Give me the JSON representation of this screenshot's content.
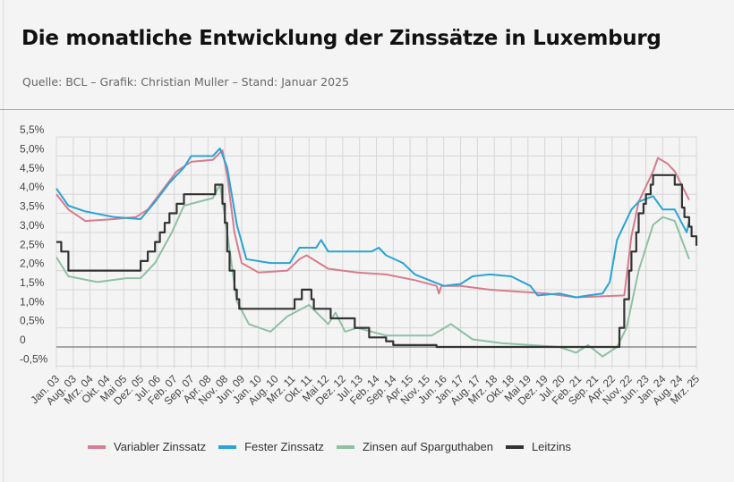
{
  "header": {
    "title": "Die monatliche Entwicklung der Zinssätze in Luxemburg",
    "subtitle": "Quelle: BCL – Grafik: Christian Muller – Stand: Januar 2025"
  },
  "chart_data": {
    "type": "line",
    "title": "Die monatliche Entwicklung der Zinssätze in Luxemburg",
    "xlabel": "",
    "ylabel": "",
    "ylim": [
      -0.5,
      5.5
    ],
    "xlim": [
      "2003-01",
      "2025-03"
    ],
    "grid": true,
    "legend": "bottom",
    "y_ticks": [
      "-0,5%",
      "0",
      "0,5%",
      "1,0%",
      "1,5%",
      "2,0%",
      "2,5%",
      "3,0%",
      "3,5%",
      "4,0%",
      "4,5%",
      "5,0%",
      "5,5%"
    ],
    "y_tick_values": [
      -0.5,
      0,
      0.5,
      1,
      1.5,
      2,
      2.5,
      3,
      3.5,
      4,
      4.5,
      5,
      5.5
    ],
    "x_ticks": [
      "Jan. 03",
      "Aug. 03",
      "Mrz. 04",
      "Okt. 04",
      "Mai 05",
      "Dez. 05",
      "Jul. 06",
      "Feb. 07",
      "Sep. 07",
      "Apr. 08",
      "Nov. 08",
      "Jun. 09",
      "Jan. 10",
      "Aug. 10",
      "Mrz. 11",
      "Okt. 11",
      "Mai 12",
      "Dez. 12",
      "Jul. 13",
      "Feb. 14",
      "Sep. 14",
      "Apr. 15",
      "Nov. 15",
      "Jun. 16",
      "Jan. 17",
      "Aug. 17",
      "Mrz. 18",
      "Okt. 18",
      "Mai 19",
      "Dez. 19",
      "Jul. 20",
      "Feb. 21",
      "Sep. 21",
      "Apr. 22",
      "Nov. 22",
      "Jun. 23",
      "Jan. 24",
      "Aug. 24",
      "Mrz. 25"
    ],
    "series": [
      {
        "name": "Variabler Zinssatz",
        "color": "#d77c8e",
        "step": false,
        "points": [
          [
            "2003-01",
            4.0
          ],
          [
            "2003-06",
            3.6
          ],
          [
            "2004-01",
            3.3
          ],
          [
            "2005-01",
            3.35
          ],
          [
            "2005-10",
            3.4
          ],
          [
            "2006-03",
            3.6
          ],
          [
            "2006-09",
            4.1
          ],
          [
            "2007-03",
            4.6
          ],
          [
            "2007-09",
            4.85
          ],
          [
            "2008-06",
            4.9
          ],
          [
            "2008-10",
            5.15
          ],
          [
            "2008-12",
            4.5
          ],
          [
            "2009-03",
            3.0
          ],
          [
            "2009-06",
            2.2
          ],
          [
            "2010-01",
            1.95
          ],
          [
            "2011-01",
            2.0
          ],
          [
            "2011-06",
            2.3
          ],
          [
            "2011-09",
            2.4
          ],
          [
            "2012-06",
            2.05
          ],
          [
            "2013-06",
            1.95
          ],
          [
            "2014-06",
            1.9
          ],
          [
            "2015-06",
            1.75
          ],
          [
            "2016-03",
            1.6
          ],
          [
            "2016-04",
            1.4
          ],
          [
            "2016-05",
            1.6
          ],
          [
            "2017-01",
            1.6
          ],
          [
            "2018-01",
            1.5
          ],
          [
            "2019-01",
            1.45
          ],
          [
            "2020-01",
            1.4
          ],
          [
            "2021-01",
            1.3
          ],
          [
            "2022-09",
            1.35
          ],
          [
            "2022-12",
            2.9
          ],
          [
            "2023-03",
            3.8
          ],
          [
            "2023-09",
            4.6
          ],
          [
            "2023-11",
            4.95
          ],
          [
            "2024-03",
            4.8
          ],
          [
            "2024-06",
            4.6
          ],
          [
            "2024-12",
            3.85
          ]
        ]
      },
      {
        "name": "Fester Zinssatz",
        "color": "#2aa3d6",
        "step": false,
        "points": [
          [
            "2003-01",
            4.15
          ],
          [
            "2003-06",
            3.7
          ],
          [
            "2004-01",
            3.55
          ],
          [
            "2005-01",
            3.4
          ],
          [
            "2005-12",
            3.35
          ],
          [
            "2006-06",
            3.8
          ],
          [
            "2006-12",
            4.3
          ],
          [
            "2007-06",
            4.7
          ],
          [
            "2007-09",
            5.0
          ],
          [
            "2008-06",
            5.0
          ],
          [
            "2008-09",
            5.2
          ],
          [
            "2008-12",
            4.7
          ],
          [
            "2009-04",
            3.2
          ],
          [
            "2009-08",
            2.3
          ],
          [
            "2010-06",
            2.2
          ],
          [
            "2011-02",
            2.2
          ],
          [
            "2011-06",
            2.6
          ],
          [
            "2012-01",
            2.6
          ],
          [
            "2012-03",
            2.8
          ],
          [
            "2012-06",
            2.5
          ],
          [
            "2013-12",
            2.5
          ],
          [
            "2014-03",
            2.6
          ],
          [
            "2014-06",
            2.4
          ],
          [
            "2015-01",
            2.2
          ],
          [
            "2015-06",
            1.9
          ],
          [
            "2016-06",
            1.6
          ],
          [
            "2017-01",
            1.65
          ],
          [
            "2017-06",
            1.85
          ],
          [
            "2018-01",
            1.9
          ],
          [
            "2018-10",
            1.85
          ],
          [
            "2019-06",
            1.6
          ],
          [
            "2019-09",
            1.35
          ],
          [
            "2020-06",
            1.4
          ],
          [
            "2021-01",
            1.3
          ],
          [
            "2021-06",
            1.35
          ],
          [
            "2021-12",
            1.4
          ],
          [
            "2022-03",
            1.7
          ],
          [
            "2022-06",
            2.8
          ],
          [
            "2022-12",
            3.6
          ],
          [
            "2023-03",
            3.8
          ],
          [
            "2023-09",
            3.95
          ],
          [
            "2024-01",
            3.6
          ],
          [
            "2024-06",
            3.6
          ],
          [
            "2024-11",
            3.0
          ],
          [
            "2024-12",
            3.3
          ]
        ]
      },
      {
        "name": "Zinsen auf Sparguthaben",
        "color": "#8fc0a4",
        "step": false,
        "points": [
          [
            "2003-01",
            2.35
          ],
          [
            "2003-06",
            1.85
          ],
          [
            "2004-06",
            1.7
          ],
          [
            "2005-06",
            1.8
          ],
          [
            "2005-12",
            1.8
          ],
          [
            "2006-06",
            2.2
          ],
          [
            "2007-01",
            3.0
          ],
          [
            "2007-06",
            3.7
          ],
          [
            "2008-06",
            3.9
          ],
          [
            "2008-09",
            4.25
          ],
          [
            "2008-12",
            3.0
          ],
          [
            "2009-04",
            1.2
          ],
          [
            "2009-09",
            0.6
          ],
          [
            "2010-06",
            0.4
          ],
          [
            "2011-01",
            0.8
          ],
          [
            "2011-10",
            1.1
          ],
          [
            "2012-06",
            0.6
          ],
          [
            "2012-09",
            0.9
          ],
          [
            "2013-01",
            0.4
          ],
          [
            "2013-06",
            0.5
          ],
          [
            "2014-06",
            0.3
          ],
          [
            "2016-01",
            0.3
          ],
          [
            "2016-09",
            0.6
          ],
          [
            "2017-06",
            0.2
          ],
          [
            "2018-06",
            0.1
          ],
          [
            "2019-06",
            0.05
          ],
          [
            "2020-06",
            0.0
          ],
          [
            "2021-01",
            -0.15
          ],
          [
            "2021-06",
            0.05
          ],
          [
            "2021-12",
            -0.25
          ],
          [
            "2022-06",
            0.0
          ],
          [
            "2022-10",
            0.5
          ],
          [
            "2023-03",
            2.0
          ],
          [
            "2023-09",
            3.2
          ],
          [
            "2024-01",
            3.4
          ],
          [
            "2024-06",
            3.3
          ],
          [
            "2024-12",
            2.3
          ]
        ]
      },
      {
        "name": "Leitzins",
        "color": "#333333",
        "step": true,
        "points": [
          [
            "2003-01",
            2.75
          ],
          [
            "2003-03",
            2.5
          ],
          [
            "2003-06",
            2.0
          ],
          [
            "2005-12",
            2.25
          ],
          [
            "2006-03",
            2.5
          ],
          [
            "2006-06",
            2.75
          ],
          [
            "2006-08",
            3.0
          ],
          [
            "2006-10",
            3.25
          ],
          [
            "2006-12",
            3.5
          ],
          [
            "2007-03",
            3.75
          ],
          [
            "2007-06",
            4.0
          ],
          [
            "2008-07",
            4.25
          ],
          [
            "2008-10",
            3.75
          ],
          [
            "2008-11",
            3.25
          ],
          [
            "2008-12",
            2.5
          ],
          [
            "2009-01",
            2.0
          ],
          [
            "2009-03",
            1.5
          ],
          [
            "2009-04",
            1.25
          ],
          [
            "2009-05",
            1.0
          ],
          [
            "2011-04",
            1.25
          ],
          [
            "2011-07",
            1.5
          ],
          [
            "2011-11",
            1.25
          ],
          [
            "2011-12",
            1.0
          ],
          [
            "2012-07",
            0.75
          ],
          [
            "2013-05",
            0.5
          ],
          [
            "2013-11",
            0.25
          ],
          [
            "2014-06",
            0.15
          ],
          [
            "2014-09",
            0.05
          ],
          [
            "2016-03",
            0.0
          ],
          [
            "2022-07",
            0.5
          ],
          [
            "2022-09",
            1.25
          ],
          [
            "2022-11",
            2.0
          ],
          [
            "2022-12",
            2.5
          ],
          [
            "2023-02",
            3.0
          ],
          [
            "2023-03",
            3.5
          ],
          [
            "2023-05",
            3.75
          ],
          [
            "2023-06",
            4.0
          ],
          [
            "2023-08",
            4.25
          ],
          [
            "2023-09",
            4.5
          ],
          [
            "2024-06",
            4.25
          ],
          [
            "2024-09",
            3.65
          ],
          [
            "2024-10",
            3.4
          ],
          [
            "2024-12",
            3.15
          ],
          [
            "2025-01",
            2.9
          ],
          [
            "2025-03",
            2.65
          ]
        ]
      }
    ]
  }
}
